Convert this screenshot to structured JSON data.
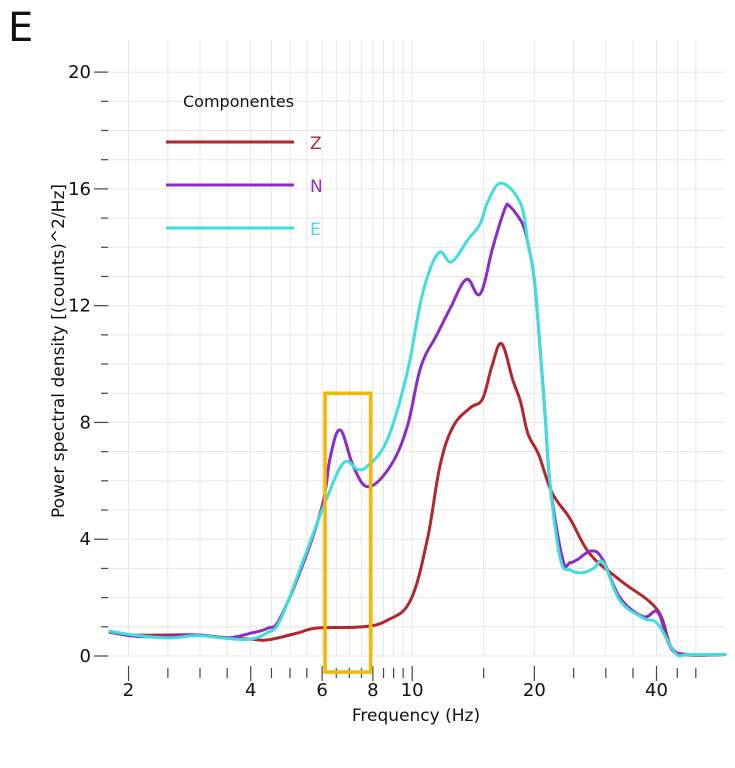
{
  "panel_label": "E",
  "chart_data": {
    "type": "line",
    "title": "",
    "xlabel": "Frequency (Hz)",
    "ylabel": "Power spectral density [(counts)^2/Hz]",
    "xscale": "log",
    "xlim": [
      1.78,
      59
    ],
    "ylim": [
      0,
      21.1
    ],
    "grid": true,
    "x_major_ticks": [
      2,
      4,
      6,
      8,
      10,
      20,
      40
    ],
    "x_tick_labels": [
      "2",
      "4",
      "6",
      "8",
      "10",
      "20",
      "40"
    ],
    "x_minor_ticks": [
      2.5,
      3,
      3.5,
      4.5,
      5,
      5.5,
      6.5,
      7,
      7.5,
      8.5,
      9,
      9.5,
      15,
      25,
      30,
      35,
      45,
      50
    ],
    "y_major_ticks": [
      0,
      4,
      8,
      12,
      16,
      20
    ],
    "y_tick_labels": [
      "0",
      "4",
      "8",
      "12",
      "16",
      "20"
    ],
    "y_minor_ticks": [
      1,
      2,
      3,
      5,
      6,
      7,
      9,
      10,
      11,
      13,
      14,
      15,
      17,
      18,
      19
    ],
    "legend": {
      "title": "Componentes",
      "position": "top-left"
    },
    "series": [
      {
        "name": "Z",
        "color": "#b3262a",
        "x": [
          1.8,
          2.06,
          2.5,
          2.96,
          3.5,
          4.0,
          4.4,
          5.2,
          5.84,
          7.58,
          8.7,
          9.9,
          10.9,
          11.7,
          12.6,
          13.9,
          14.9,
          15.7,
          16.6,
          17.7,
          18.5,
          19.3,
          20.5,
          22.1,
          24.5,
          27.4,
          32.5,
          40.1,
          43.5,
          48,
          59
        ],
        "values": [
          0.82,
          0.72,
          0.72,
          0.72,
          0.62,
          0.58,
          0.55,
          0.78,
          0.96,
          1.0,
          1.23,
          1.9,
          4.0,
          6.5,
          7.85,
          8.5,
          8.8,
          9.9,
          10.7,
          9.45,
          8.7,
          7.6,
          6.9,
          5.6,
          4.7,
          3.5,
          2.6,
          1.6,
          0.3,
          0.05,
          0.05
        ]
      },
      {
        "name": "N",
        "color": "#8e2bc6",
        "x": [
          1.8,
          2.06,
          2.5,
          2.96,
          3.5,
          4.0,
          4.4,
          4.73,
          5.5,
          6.04,
          6.28,
          6.65,
          7.16,
          7.79,
          8.83,
          9.72,
          10.5,
          11.5,
          12.4,
          13.6,
          14.7,
          15.8,
          16.9,
          17.4,
          18.7,
          19.3,
          20.0,
          20.7,
          21.3,
          21.9,
          23.5,
          24.5,
          25.5,
          27.7,
          29.5,
          32.5,
          37.1,
          40.3,
          42.8,
          46,
          59
        ],
        "values": [
          0.82,
          0.68,
          0.66,
          0.72,
          0.62,
          0.78,
          0.95,
          1.3,
          3.5,
          5.3,
          6.8,
          7.74,
          6.5,
          5.8,
          6.5,
          7.85,
          9.9,
          11.0,
          11.9,
          12.9,
          12.4,
          14.0,
          15.3,
          15.4,
          14.8,
          14.1,
          12.9,
          10.4,
          8.1,
          5.8,
          3.3,
          3.2,
          3.3,
          3.6,
          3.3,
          2.0,
          1.35,
          1.5,
          0.45,
          0.06,
          0.05
        ]
      },
      {
        "name": "E",
        "color": "#3fdede",
        "x": [
          1.8,
          2.06,
          2.5,
          2.96,
          3.5,
          4.0,
          4.4,
          4.73,
          5.4,
          6.04,
          6.76,
          7.32,
          7.75,
          8.68,
          9.72,
          10.6,
          11.6,
          12.5,
          13.7,
          14.7,
          15.4,
          16.6,
          18.5,
          19.3,
          20.0,
          20.7,
          21.3,
          21.9,
          23.2,
          24.5,
          26.2,
          28.0,
          29.6,
          32.5,
          37.1,
          40.3,
          44.5,
          48,
          59
        ],
        "values": [
          0.85,
          0.72,
          0.62,
          0.7,
          0.6,
          0.58,
          0.8,
          1.23,
          3.3,
          5.1,
          6.6,
          6.4,
          6.5,
          7.4,
          9.7,
          12.4,
          13.8,
          13.5,
          14.25,
          14.8,
          15.6,
          16.2,
          15.5,
          14.1,
          12.9,
          10.4,
          8.1,
          5.8,
          3.3,
          2.95,
          2.85,
          3.0,
          3.2,
          1.9,
          1.3,
          1.1,
          0.1,
          0.05,
          0.05
        ]
      }
    ],
    "annotations": [
      {
        "type": "rectangle",
        "color": "#f5b800",
        "x_range": [
          6.1,
          7.9
        ],
        "y_range": [
          -0.55,
          9.0
        ]
      }
    ]
  }
}
